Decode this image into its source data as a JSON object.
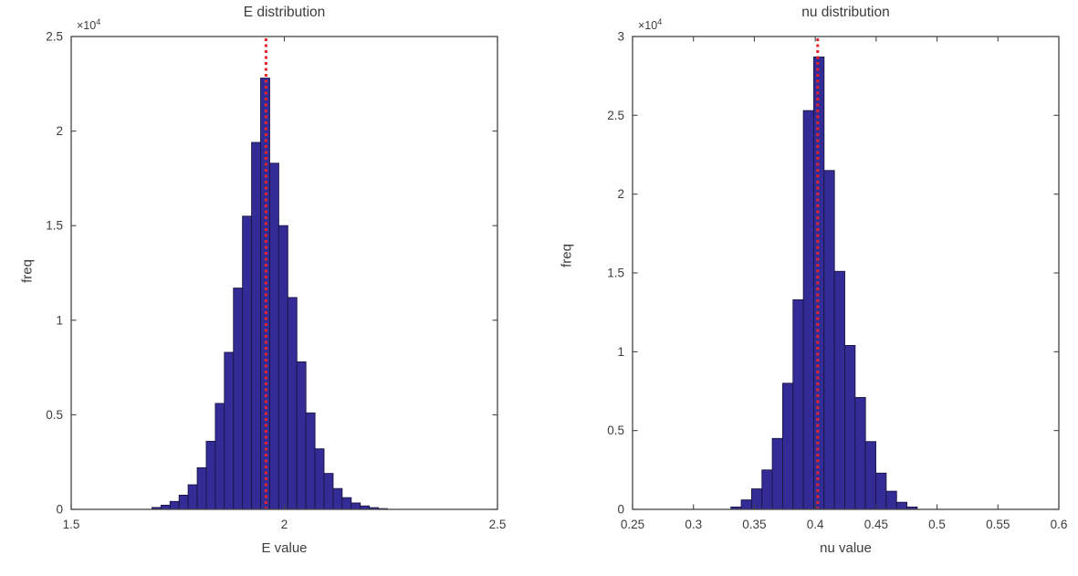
{
  "figure": {
    "background": "#ffffff",
    "axis_color": "#454545",
    "text_color": "#3c3c3c"
  },
  "chart_data": [
    {
      "type": "bar",
      "subtype": "histogram",
      "title": "E distribution",
      "xlabel": "E value",
      "ylabel": "freq",
      "offset_base": "×10",
      "offset_exp": "4",
      "xlim": [
        1.5,
        2.5
      ],
      "ylim": [
        0,
        25000
      ],
      "xticks": [
        1.5,
        2.0,
        2.5
      ],
      "xtick_labels": [
        "1.5",
        "2",
        "2.5"
      ],
      "yticks": [
        0,
        5000,
        10000,
        15000,
        20000,
        25000
      ],
      "ytick_labels": [
        "0",
        "0.5",
        "1",
        "1.5",
        "2",
        "2.5"
      ],
      "grid": false,
      "legend": null,
      "bin_width": 0.0213,
      "bin_centers": [
        1.7,
        1.7213,
        1.7425,
        1.7638,
        1.785,
        1.8063,
        1.8275,
        1.8488,
        1.87,
        1.8913,
        1.9125,
        1.9338,
        1.955,
        1.9763,
        1.9975,
        2.0188,
        2.04,
        2.0613,
        2.0825,
        2.1038,
        2.125,
        2.1463,
        2.1675,
        2.1888,
        2.21,
        2.2313
      ],
      "counts": [
        100,
        220,
        420,
        750,
        1300,
        2200,
        3600,
        5600,
        8300,
        11700,
        15500,
        19400,
        22800,
        18300,
        15000,
        11200,
        7800,
        5100,
        3200,
        1900,
        1100,
        620,
        340,
        180,
        90,
        40
      ],
      "vline": {
        "x": 1.957,
        "style": "dotted",
        "color": "#e3242b"
      },
      "bar_fill": "#332c96",
      "bar_edge": "#1b1543"
    },
    {
      "type": "bar",
      "subtype": "histogram",
      "title": "nu distribution",
      "xlabel": "nu value",
      "ylabel": "freq",
      "offset_base": "×10",
      "offset_exp": "4",
      "xlim": [
        0.25,
        0.6
      ],
      "ylim": [
        0,
        30000
      ],
      "xticks": [
        0.25,
        0.3,
        0.35,
        0.4,
        0.45,
        0.5,
        0.55,
        0.6
      ],
      "xtick_labels": [
        "0.25",
        "0.3",
        "0.35",
        "0.4",
        "0.45",
        "0.5",
        "0.55",
        "0.6"
      ],
      "yticks": [
        0,
        5000,
        10000,
        15000,
        20000,
        25000,
        30000
      ],
      "ytick_labels": [
        "0",
        "0.5",
        "1",
        "1.5",
        "2",
        "2.5",
        "3"
      ],
      "grid": false,
      "legend": null,
      "bin_width": 0.0085,
      "bin_centers": [
        0.335,
        0.3435,
        0.352,
        0.3605,
        0.369,
        0.3775,
        0.386,
        0.3945,
        0.403,
        0.4115,
        0.42,
        0.4285,
        0.437,
        0.4455,
        0.454,
        0.4625,
        0.471,
        0.4795
      ],
      "counts": [
        150,
        600,
        1300,
        2500,
        4500,
        8000,
        13300,
        25300,
        28700,
        21500,
        15100,
        10400,
        7100,
        4300,
        2300,
        1150,
        450,
        150
      ],
      "vline": {
        "x": 0.402,
        "style": "dotted",
        "color": "#e3242b"
      },
      "bar_fill": "#332c96",
      "bar_edge": "#1b1543"
    }
  ]
}
